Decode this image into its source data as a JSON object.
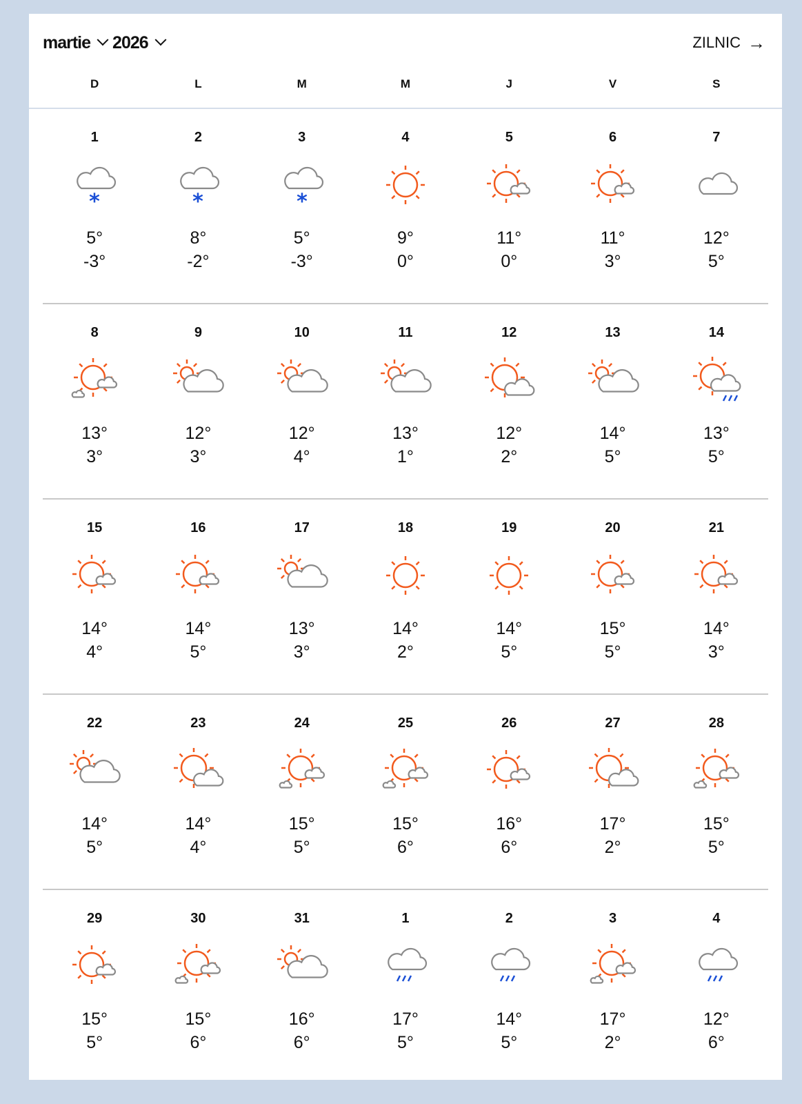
{
  "header": {
    "month": "martie",
    "year": "2026",
    "daily_label": "ZILNIC",
    "daily_arrow": "→"
  },
  "colors": {
    "sun": "#f25a1d",
    "cloud": "#8a8a8a",
    "precip": "#1a4fd6",
    "background": "#cbd8e8"
  },
  "weekdays": [
    "D",
    "L",
    "M",
    "M",
    "J",
    "V",
    "S"
  ],
  "weeks": [
    [
      {
        "day": "1",
        "icon": "snow",
        "high": "5°",
        "low": "-3°"
      },
      {
        "day": "2",
        "icon": "snow",
        "high": "8°",
        "low": "-2°"
      },
      {
        "day": "3",
        "icon": "snow",
        "high": "5°",
        "low": "-3°"
      },
      {
        "day": "4",
        "icon": "sunny",
        "high": "9°",
        "low": "0°"
      },
      {
        "day": "5",
        "icon": "mostly-sunny",
        "high": "11°",
        "low": "0°"
      },
      {
        "day": "6",
        "icon": "mostly-sunny",
        "high": "11°",
        "low": "3°"
      },
      {
        "day": "7",
        "icon": "cloudy",
        "high": "12°",
        "low": "5°"
      }
    ],
    [
      {
        "day": "8",
        "icon": "mostly-sunny-clouds",
        "high": "13°",
        "low": "3°"
      },
      {
        "day": "9",
        "icon": "partly-cloudy",
        "high": "12°",
        "low": "3°"
      },
      {
        "day": "10",
        "icon": "partly-cloudy",
        "high": "12°",
        "low": "4°"
      },
      {
        "day": "11",
        "icon": "partly-cloudy",
        "high": "13°",
        "low": "1°"
      },
      {
        "day": "12",
        "icon": "sun-and-cloud",
        "high": "12°",
        "low": "2°"
      },
      {
        "day": "13",
        "icon": "partly-cloudy",
        "high": "14°",
        "low": "5°"
      },
      {
        "day": "14",
        "icon": "sun-cloud-rain",
        "high": "13°",
        "low": "5°"
      }
    ],
    [
      {
        "day": "15",
        "icon": "mostly-sunny",
        "high": "14°",
        "low": "4°"
      },
      {
        "day": "16",
        "icon": "mostly-sunny",
        "high": "14°",
        "low": "5°"
      },
      {
        "day": "17",
        "icon": "partly-cloudy",
        "high": "13°",
        "low": "3°"
      },
      {
        "day": "18",
        "icon": "sunny",
        "high": "14°",
        "low": "2°"
      },
      {
        "day": "19",
        "icon": "sunny",
        "high": "14°",
        "low": "5°"
      },
      {
        "day": "20",
        "icon": "mostly-sunny",
        "high": "15°",
        "low": "5°"
      },
      {
        "day": "21",
        "icon": "mostly-sunny",
        "high": "14°",
        "low": "3°"
      }
    ],
    [
      {
        "day": "22",
        "icon": "partly-cloudy",
        "high": "14°",
        "low": "5°"
      },
      {
        "day": "23",
        "icon": "sun-and-cloud",
        "high": "14°",
        "low": "4°"
      },
      {
        "day": "24",
        "icon": "mostly-sunny-clouds",
        "high": "15°",
        "low": "5°"
      },
      {
        "day": "25",
        "icon": "mostly-sunny-clouds",
        "high": "15°",
        "low": "6°"
      },
      {
        "day": "26",
        "icon": "mostly-sunny",
        "high": "16°",
        "low": "6°"
      },
      {
        "day": "27",
        "icon": "sun-and-cloud",
        "high": "17°",
        "low": "2°"
      },
      {
        "day": "28",
        "icon": "mostly-sunny-clouds",
        "high": "15°",
        "low": "5°"
      }
    ],
    [
      {
        "day": "29",
        "icon": "mostly-sunny",
        "high": "15°",
        "low": "5°"
      },
      {
        "day": "30",
        "icon": "mostly-sunny-clouds",
        "high": "15°",
        "low": "6°"
      },
      {
        "day": "31",
        "icon": "partly-cloudy",
        "high": "16°",
        "low": "6°"
      },
      {
        "day": "1",
        "icon": "rain",
        "high": "17°",
        "low": "5°"
      },
      {
        "day": "2",
        "icon": "rain",
        "high": "14°",
        "low": "5°"
      },
      {
        "day": "3",
        "icon": "mostly-sunny-clouds",
        "high": "17°",
        "low": "2°"
      },
      {
        "day": "4",
        "icon": "rain",
        "high": "12°",
        "low": "6°"
      }
    ]
  ]
}
